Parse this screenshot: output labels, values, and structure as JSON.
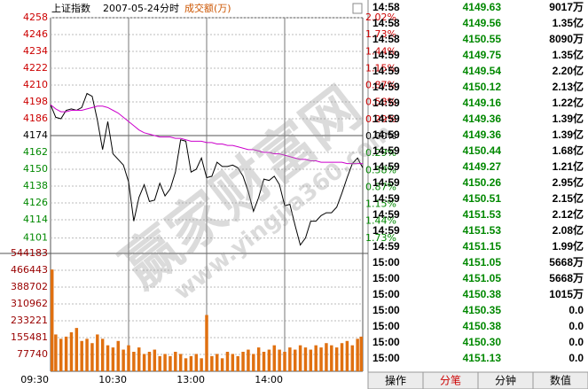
{
  "header": {
    "title": "上证指数",
    "date": "2007-05-24",
    "mode": "分时",
    "volume_title": "成交额(万)"
  },
  "chart_data": [
    {
      "type": "line",
      "xlim": [
        0,
        240
      ],
      "x": [
        0,
        4,
        8,
        12,
        16,
        20,
        24,
        28,
        32,
        36,
        40,
        44,
        48,
        52,
        56,
        60,
        64,
        68,
        72,
        76,
        80,
        84,
        88,
        92,
        96,
        100,
        104,
        108,
        112,
        116,
        120,
        124,
        128,
        132,
        136,
        140,
        144,
        148,
        152,
        156,
        160,
        164,
        168,
        172,
        176,
        180,
        184,
        188,
        192,
        196,
        200,
        204,
        208,
        212,
        216,
        220,
        224,
        228,
        232,
        236,
        240
      ],
      "series": [
        {
          "color": "#000000",
          "values": [
            4196,
            4187,
            4186,
            4192,
            4193,
            4192,
            4194,
            4204,
            4202,
            4185,
            4164,
            4184,
            4161,
            4157,
            4153,
            4141,
            4113,
            4130,
            4139,
            4127,
            4128,
            4140,
            4131,
            4136,
            4148,
            4171,
            4170,
            4148,
            4150,
            4158,
            4144,
            4145,
            4155,
            4152,
            4152,
            4153,
            4151,
            4145,
            4134,
            4120,
            4130,
            4143,
            4142,
            4145,
            4139,
            4124,
            4125,
            4110,
            4096,
            4101,
            4113,
            4113,
            4117,
            4119,
            4119,
            4123,
            4133,
            4144,
            4154,
            4158,
            4151
          ]
        },
        {
          "color": "#cc00cc",
          "values": [
            4196,
            4193,
            4191,
            4191,
            4192,
            4192,
            4192,
            4193,
            4194,
            4195,
            4195,
            4194,
            4192,
            4190,
            4187,
            4184,
            4181,
            4178,
            4176,
            4175,
            4174,
            4173,
            4173,
            4173,
            4172,
            4172,
            4171,
            4170,
            4170,
            4170,
            4169,
            4169,
            4168,
            4168,
            4167,
            4167,
            4166,
            4165,
            4164,
            4164,
            4163,
            4162,
            4162,
            4161,
            4161,
            4160,
            4159,
            4158,
            4157,
            4157,
            4156,
            4156,
            4155,
            4155,
            4155,
            4155,
            4155,
            4154,
            4154,
            4154,
            4154
          ]
        }
      ],
      "ylim": [
        4090,
        4258
      ],
      "yticks": [
        4258,
        4246,
        4234,
        4222,
        4210,
        4198,
        4186,
        4174,
        4162,
        4150,
        4138,
        4126,
        4114,
        4101
      ],
      "y2lim": [
        -1.99,
        2.02
      ],
      "y2ticks": [
        {
          "value": 2.02,
          "label": "2.02%"
        },
        {
          "value": 1.73,
          "label": "1.73%"
        },
        {
          "value": 1.44,
          "label": "1.44%"
        },
        {
          "value": 1.15,
          "label": "1.15%"
        },
        {
          "value": 0.87,
          "label": "0.87%"
        },
        {
          "value": 0.58,
          "label": "0.58%"
        },
        {
          "value": 0.29,
          "label": "0.29%"
        },
        {
          "value": 0,
          "label": "0.00%"
        },
        {
          "value": -0.29,
          "label": "0.29%"
        },
        {
          "value": -0.58,
          "label": "0.58%"
        },
        {
          "value": -0.87,
          "label": "0.87%"
        },
        {
          "value": -1.15,
          "label": "1.15%"
        },
        {
          "value": -1.44,
          "label": "1.44%"
        },
        {
          "value": -1.73,
          "label": "1.73%"
        }
      ],
      "up_color": "#cc0000",
      "down_color": "#008800",
      "flat_color": "#000000",
      "grid": true
    },
    {
      "type": "bar",
      "color": "#e07010",
      "label_color": "#990000",
      "xlim": [
        0,
        240
      ],
      "x": [
        0,
        4,
        8,
        12,
        16,
        20,
        24,
        28,
        32,
        36,
        40,
        44,
        48,
        52,
        56,
        60,
        64,
        68,
        72,
        76,
        80,
        84,
        88,
        92,
        96,
        100,
        104,
        108,
        112,
        116,
        120,
        124,
        128,
        132,
        136,
        140,
        144,
        148,
        152,
        156,
        160,
        164,
        168,
        172,
        176,
        180,
        184,
        188,
        192,
        196,
        200,
        204,
        208,
        212,
        216,
        220,
        224,
        228,
        232,
        236,
        240
      ],
      "values": [
        470000,
        170000,
        150000,
        160000,
        180000,
        200000,
        140000,
        150000,
        130000,
        170000,
        150000,
        120000,
        110000,
        140000,
        100000,
        120000,
        90000,
        110000,
        80000,
        90000,
        100000,
        70000,
        80000,
        70000,
        90000,
        80000,
        60000,
        70000,
        80000,
        60000,
        260000,
        70000,
        80000,
        60000,
        90000,
        80000,
        70000,
        90000,
        100000,
        80000,
        110000,
        90000,
        100000,
        120000,
        100000,
        90000,
        110000,
        100000,
        120000,
        110000,
        100000,
        120000,
        110000,
        130000,
        120000,
        110000,
        130000,
        140000,
        120000,
        150000,
        160000
      ],
      "ylim": [
        0,
        544183
      ],
      "yticks": [
        544183,
        466443,
        388702,
        310962,
        233221,
        155481,
        77740
      ],
      "xticks": [
        {
          "value": 0,
          "label": "09:30"
        },
        {
          "value": 60,
          "label": "10:30"
        },
        {
          "value": 120,
          "label": "13:00"
        },
        {
          "value": 180,
          "label": "14:00"
        }
      ],
      "grid": true
    }
  ],
  "ticks_table": {
    "time_color": "#000000",
    "price_color": "#008800",
    "volume_color": "#000000",
    "rows": [
      [
        "14:58",
        "4149.63",
        "9017万"
      ],
      [
        "14:58",
        "4149.56",
        "1.35亿"
      ],
      [
        "14:58",
        "4150.55",
        "8090万"
      ],
      [
        "14:59",
        "4149.75",
        "1.35亿"
      ],
      [
        "14:59",
        "4149.54",
        "2.20亿"
      ],
      [
        "14:59",
        "4150.12",
        "2.13亿"
      ],
      [
        "14:59",
        "4149.16",
        "1.22亿"
      ],
      [
        "14:59",
        "4149.36",
        "1.39亿"
      ],
      [
        "14:59",
        "4149.36",
        "1.39亿"
      ],
      [
        "14:59",
        "4150.44",
        "1.68亿"
      ],
      [
        "14:59",
        "4149.27",
        "1.21亿"
      ],
      [
        "14:59",
        "4150.26",
        "2.95亿"
      ],
      [
        "14:59",
        "4150.51",
        "2.15亿"
      ],
      [
        "14:59",
        "4151.53",
        "2.12亿"
      ],
      [
        "14:59",
        "4151.53",
        "2.08亿"
      ],
      [
        "14:59",
        "4151.15",
        "1.99亿"
      ],
      [
        "15:00",
        "4151.05",
        "5668万"
      ],
      [
        "15:00",
        "4151.05",
        "5668万"
      ],
      [
        "15:00",
        "4150.38",
        "1015万"
      ],
      [
        "15:00",
        "4150.35",
        "0.0"
      ],
      [
        "15:00",
        "4150.38",
        "0.0"
      ],
      [
        "15:00",
        "4150.30",
        "0.0"
      ],
      [
        "15:00",
        "4151.13",
        "0.0"
      ]
    ]
  },
  "tabs": {
    "items": [
      "操作",
      "分笔",
      "分钟",
      "数值"
    ],
    "active": 1,
    "active_color": "#cc0000"
  },
  "watermark": [
    "赢家财富网",
    "www.yingjia360.com"
  ]
}
